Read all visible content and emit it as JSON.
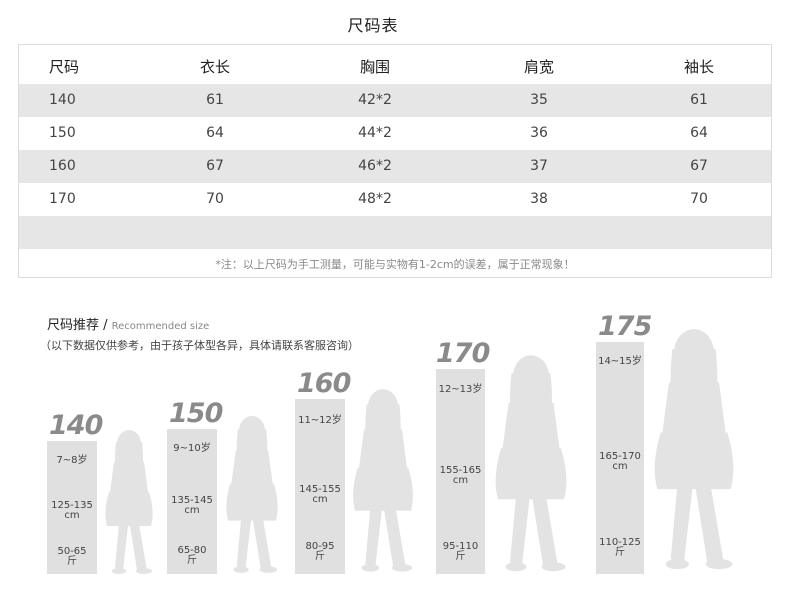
{
  "title": "尺码表",
  "table": {
    "headers": [
      "尺码",
      "衣长",
      "胸围",
      "肩宽",
      "袖长"
    ],
    "rows": [
      [
        "140",
        "61",
        "42*2",
        "35",
        "61"
      ],
      [
        "150",
        "64",
        "44*2",
        "36",
        "64"
      ],
      [
        "160",
        "67",
        "46*2",
        "37",
        "67"
      ],
      [
        "170",
        "70",
        "48*2",
        "38",
        "70"
      ]
    ],
    "note": "*注：以上尺码为手工测量，可能与实物有1-2cm的误差，属于正常现象！"
  },
  "recommend": {
    "title": "尺码推荐 /",
    "title_en": "Recommended size",
    "subtitle": "（以下数据仅供参考，由于孩子体型各异，具体请联系客服咨询）",
    "sizes": [
      {
        "height": "140",
        "age": "7~8岁",
        "height_range": "125-135\ncm",
        "weight": "50-65\n斤"
      },
      {
        "height": "150",
        "age": "9~10岁",
        "height_range": "135-145\ncm",
        "weight": "65-80\n斤"
      },
      {
        "height": "160",
        "age": "11~12岁",
        "height_range": "145-155\ncm",
        "weight": "80-95\n斤"
      },
      {
        "height": "170",
        "age": "12~13岁",
        "height_range": "155-165\ncm",
        "weight": "95-110\n斤"
      },
      {
        "height": "175",
        "age": "14~15岁",
        "height_range": "165-170\ncm",
        "weight": "110-125\n斤"
      }
    ]
  },
  "colors": {
    "shade": "#e6e6e6",
    "bar": "#e0e0e0",
    "figure": "#e3e3e3",
    "height_text": "#8a8a8a"
  }
}
